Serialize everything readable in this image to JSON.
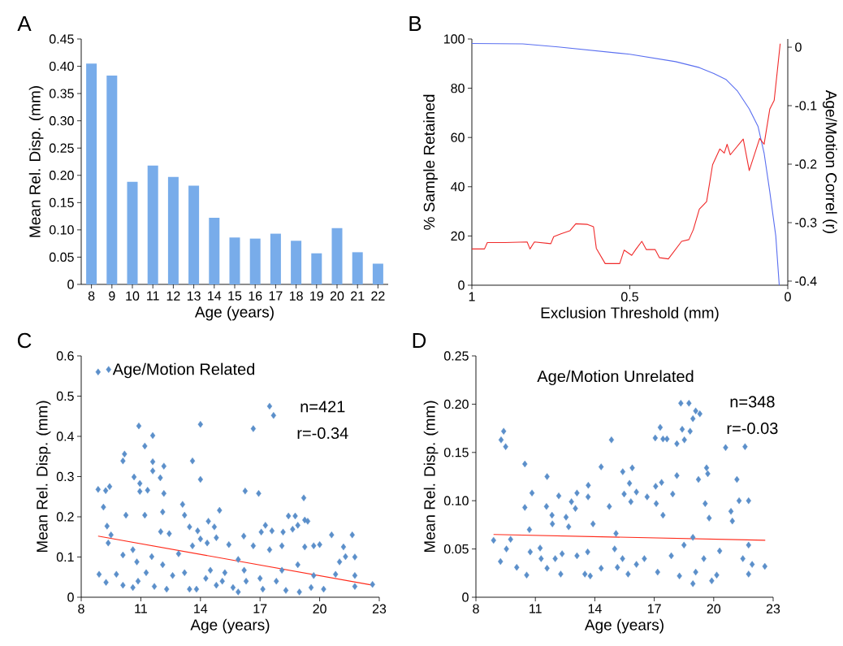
{
  "chart_data": [
    {
      "type": "bar",
      "title": "A",
      "xlabel": "Age (years)",
      "ylabel": "Mean Rel. Disp. (mm)",
      "categories": [
        "8",
        "9",
        "10",
        "11",
        "12",
        "13",
        "14",
        "15",
        "16",
        "17",
        "18",
        "19",
        "20",
        "21",
        "22"
      ],
      "values": [
        0.405,
        0.383,
        0.188,
        0.218,
        0.197,
        0.181,
        0.122,
        0.086,
        0.084,
        0.093,
        0.08,
        0.057,
        0.103,
        0.059,
        0.038
      ],
      "color": "#78acea",
      "ylim": [
        0,
        0.45
      ],
      "yticks": [
        0,
        0.05,
        {
          "value": 0.1,
          "label": "0.10"
        },
        0.15,
        {
          "value": 0.2,
          "label": "0.20"
        },
        0.25,
        {
          "value": 0.3,
          "label": "0.30"
        },
        0.35,
        {
          "value": 0.4,
          "label": "0.40"
        },
        0.45
      ]
    },
    {
      "type": "line",
      "title": "B",
      "xlabel": "Exclusion Threshold (mm)",
      "ylabel": "% Sample Retained",
      "y2label": "Age/Motion Correl (r)",
      "xlim": [
        1,
        0
      ],
      "xticks": [
        1,
        0.5,
        0
      ],
      "ylim": [
        0,
        100
      ],
      "yticks": [
        0,
        20,
        40,
        60,
        80,
        100
      ],
      "y2lim": [
        -0.407,
        0.014
      ],
      "y2ticks": [
        -0.4,
        -0.3,
        -0.2,
        -0.1,
        0
      ],
      "series": [
        {
          "color": "#5a6ff0",
          "x": [
            1,
            0.839,
            0.727,
            0.5,
            0.355,
            0.28,
            0.234,
            0.196,
            0.159,
            0.122,
            0.094,
            0.075,
            0.057,
            0.038,
            0.027
          ],
          "values": [
            98.2,
            98,
            96.8,
            93.8,
            90.8,
            88.4,
            86,
            83.6,
            78.8,
            71.6,
            64.4,
            53.7,
            38,
            20,
            0
          ]
        },
        {
          "color": "#f02a2a",
          "axis": "y2",
          "x": [
            1.0,
            0.96,
            0.951,
            0.895,
            0.825,
            0.816,
            0.802,
            0.75,
            0.741,
            0.718,
            0.69,
            0.671,
            0.634,
            0.615,
            0.606,
            0.578,
            0.532,
            0.518,
            0.494,
            0.48,
            0.462,
            0.448,
            0.42,
            0.406,
            0.378,
            0.336,
            0.313,
            0.299,
            0.28,
            0.257,
            0.238,
            0.215,
            0.201,
            0.192,
            0.182,
            0.141,
            0.122,
            0.089,
            0.075,
            0.057,
            0.043,
            0.034,
            0.024
          ],
          "values": [
            -0.345,
            -0.345,
            -0.334,
            -0.334,
            -0.333,
            -0.345,
            -0.333,
            -0.336,
            -0.324,
            -0.319,
            -0.314,
            -0.302,
            -0.303,
            -0.307,
            -0.344,
            -0.37,
            -0.37,
            -0.347,
            -0.356,
            -0.345,
            -0.332,
            -0.346,
            -0.346,
            -0.36,
            -0.362,
            -0.332,
            -0.329,
            -0.312,
            -0.277,
            -0.264,
            -0.201,
            -0.174,
            -0.181,
            -0.166,
            -0.184,
            -0.157,
            -0.211,
            -0.156,
            -0.166,
            -0.106,
            -0.091,
            -0.045,
            0.006
          ]
        }
      ]
    },
    {
      "type": "scatter",
      "title": "C",
      "xlabel": "Age (years)",
      "ylabel": "Mean Rel. Disp. (mm)",
      "legend": "top left",
      "xlim": [
        8,
        23
      ],
      "xticks": [
        8,
        11,
        14,
        17,
        20,
        23
      ],
      "ylim": [
        0,
        0.6
      ],
      "yticks": [
        0,
        0.1,
        0.2,
        0.3,
        0.4,
        0.5,
        0.6
      ],
      "annotations": [
        "n=421",
        "r=-0.34"
      ],
      "series": [
        {
          "name": "Age/Motion Related",
          "color": "#5b8fca",
          "marker": "diamond",
          "x": [
            8.85,
            8.85,
            9.23,
            9.43,
            9.12,
            9.3,
            9.5,
            9.36,
            8.9,
            9.25,
            9.77,
            10.18,
            10.1,
            10.25,
            10.1,
            10.1,
            10.66,
            10.9,
            10.95,
            10.95,
            11.2,
            11.2,
            11.34,
            11.6,
            11.6,
            11.6,
            11.98,
            12.16,
            12.16,
            12.1,
            12.0,
            12.43,
            10.6,
            10.8,
            10.86,
            10.6,
            11.27,
            11.55,
            11.68,
            12.1,
            12.3,
            12.6,
            12.9,
            13.1,
            13.2,
            13.45,
            13.2,
            13.6,
            13.6,
            14.0,
            14.0,
            13.86,
            14.0,
            13.8,
            14.34,
            14.4,
            14.7,
            14.96,
            14.8,
            14.27,
            14.8,
            15.23,
            15.43,
            15.64,
            15.9,
            16.18,
            16.25,
            16.3,
            16.66,
            16.66,
            16.93,
            17.06,
            17.27,
            17.48,
            17.68,
            17.6,
            17.48,
            17.14,
            17.82,
            18.1,
            18.16,
            18.43,
            18.77,
            18.64,
            18.9,
            19.2,
            19.25,
            19.4,
            19.25,
            18.98,
            18.9,
            19.7,
            20.0,
            19.7,
            20.2,
            20.6,
            20.8,
            21.0,
            21.2,
            21.3,
            21.64,
            21.77,
            21.77,
            21.77,
            22.66,
            15.1,
            15.9,
            17.0,
            18.3,
            19.57,
            18.1,
            16.2,
            14.5,
            13.45
          ],
          "values": [
            0.56,
            0.268,
            0.265,
            0.275,
            0.224,
            0.177,
            0.155,
            0.135,
            0.057,
            0.037,
            0.057,
            0.356,
            0.339,
            0.204,
            0.105,
            0.03,
            0.299,
            0.426,
            0.283,
            0.263,
            0.204,
            0.376,
            0.266,
            0.402,
            0.337,
            0.314,
            0.297,
            0.326,
            0.258,
            0.212,
            0.163,
            0.158,
            0.118,
            0.088,
            0.04,
            0.024,
            0.061,
            0.101,
            0.027,
            0.081,
            0.02,
            0.054,
            0.108,
            0.231,
            0.204,
            0.175,
            0.061,
            0.128,
            0.339,
            0.43,
            0.293,
            0.165,
            0.145,
            0.02,
            0.135,
            0.189,
            0.175,
            0.216,
            0.148,
            0.047,
            0.03,
            0.061,
            0.131,
            0.024,
            0.094,
            0.152,
            0.264,
            0.04,
            0.419,
            0.128,
            0.258,
            0.162,
            0.179,
            0.475,
            0.452,
            0.165,
            0.118,
            0.02,
            0.04,
            0.128,
            0.162,
            0.202,
            0.202,
            0.169,
            0.179,
            0.247,
            0.192,
            0.189,
            0.125,
            0.013,
            0.081,
            0.128,
            0.131,
            0.054,
            0.02,
            0.155,
            0.057,
            0.088,
            0.125,
            0.101,
            0.155,
            0.1,
            0.054,
            0.027,
            0.032,
            0.04,
            0.013,
            0.047,
            0.017,
            0.024,
            0.067,
            0.067,
            0.067,
            0.02
          ]
        },
        {
          "type": "line",
          "marker": "none",
          "color": "#ff2a1a",
          "x": [
            8.85,
            22.66
          ],
          "values": [
            0.152,
            0.03
          ]
        }
      ]
    },
    {
      "type": "scatter",
      "title": "D",
      "subtitle": "Age/Motion Unrelated",
      "xlabel": "Age (years)",
      "ylabel": "Mean Rel. Disp. (mm)",
      "xlim": [
        8,
        23
      ],
      "xticks": [
        8,
        11,
        14,
        17,
        20,
        23
      ],
      "ylim": [
        0,
        0.25
      ],
      "yticks": [
        0,
        0.05,
        {
          "value": 0.1,
          "label": "0.10"
        },
        0.15,
        {
          "value": 0.2,
          "label": "0.20"
        },
        0.25
      ],
      "annotations": [
        "n=348",
        "r=-0.03"
      ],
      "series": [
        {
          "color": "#5b8fca",
          "marker": "diamond",
          "x": [
            8.89,
            9.24,
            9.27,
            9.4,
            9.5,
            9.54,
            9.75,
            10.06,
            10.47,
            10.47,
            10.56,
            10.7,
            10.74,
            10.83,
            11.24,
            11.29,
            11.59,
            11.56,
            11.59,
            11.84,
            11.86,
            12.0,
            12.18,
            12.28,
            12.35,
            12.55,
            12.82,
            13.1,
            13.02,
            12.68,
            13.1,
            13.5,
            13.67,
            13.66,
            13.64,
            13.77,
            13.91,
            14.32,
            14.32,
            14.73,
            14.84,
            15.0,
            15.07,
            15.14,
            15.41,
            15.48,
            15.75,
            15.89,
            16.1,
            15.82,
            15.68,
            16.1,
            16.64,
            17.05,
            17.07,
            17.1,
            17.3,
            17.37,
            17.44,
            17.64,
            17.44,
            17.17,
            17.93,
            18.14,
            18.14,
            18.34,
            18.41,
            18.75,
            18.52,
            18.81,
            18.95,
            19.09,
            19.3,
            19.23,
            19.57,
            19.64,
            19.7,
            19.77,
            18.95,
            18.27,
            19.09,
            19.9,
            20.15,
            20.6,
            20.87,
            20.94,
            21.17,
            21.28,
            21.58,
            21.76,
            21.76,
            21.76,
            21.94,
            22.58,
            21.47,
            18.5,
            18.95,
            17.86,
            16.5,
            19.5,
            15.4,
            20.3
          ],
          "values": [
            0.059,
            0.037,
            0.163,
            0.172,
            0.156,
            0.05,
            0.06,
            0.031,
            0.138,
            0.093,
            0.023,
            0.07,
            0.047,
            0.108,
            0.051,
            0.04,
            0.125,
            0.094,
            0.03,
            0.085,
            0.076,
            0.04,
            0.105,
            0.024,
            0.045,
            0.083,
            0.099,
            0.108,
            0.092,
            0.073,
            0.043,
            0.024,
            0.116,
            0.104,
            0.047,
            0.022,
            0.076,
            0.135,
            0.03,
            0.094,
            0.163,
            0.05,
            0.066,
            0.031,
            0.13,
            0.107,
            0.118,
            0.134,
            0.109,
            0.099,
            0.024,
            0.034,
            0.104,
            0.165,
            0.115,
            0.097,
            0.176,
            0.119,
            0.164,
            0.164,
            0.085,
            0.026,
            0.107,
            0.159,
            0.126,
            0.201,
            0.174,
            0.201,
            0.163,
            0.172,
            0.185,
            0.193,
            0.19,
            0.122,
            0.097,
            0.134,
            0.128,
            0.082,
            0.014,
            0.022,
            0.026,
            0.017,
            0.023,
            0.155,
            0.089,
            0.079,
            0.122,
            0.1,
            0.156,
            0.1,
            0.054,
            0.024,
            0.034,
            0.032,
            0.04,
            0.054,
            0.062,
            0.043,
            0.04,
            0.04,
            0.04,
            0.048
          ]
        },
        {
          "type": "line",
          "marker": "none",
          "color": "#ff2a1a",
          "x": [
            8.89,
            22.6
          ],
          "values": [
            0.065,
            0.059
          ]
        }
      ]
    }
  ]
}
